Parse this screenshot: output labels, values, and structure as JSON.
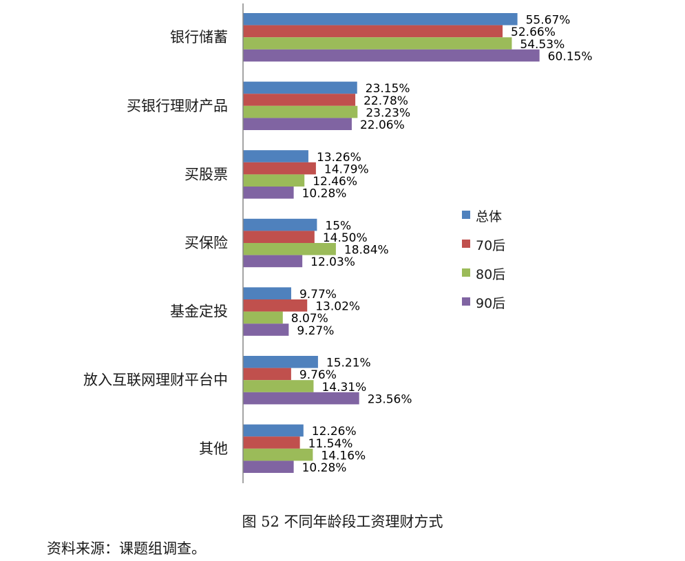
{
  "chart_data": {
    "type": "bar",
    "orientation": "horizontal",
    "title": "",
    "xlabel": "",
    "ylabel": "",
    "categories": [
      "银行储蓄",
      "买银行理财产品",
      "买股票",
      "买保险",
      "基金定投",
      "放入互联网理财平台中",
      "其他"
    ],
    "series": [
      {
        "name": "总体",
        "color": "#4F81BD",
        "values": [
          55.67,
          23.15,
          13.26,
          15,
          9.77,
          15.21,
          12.26
        ],
        "labels": [
          "55.67%",
          "23.15%",
          "13.26%",
          "15%",
          "9.77%",
          "15.21%",
          "12.26%"
        ]
      },
      {
        "name": "70后",
        "color": "#C0504D",
        "values": [
          52.66,
          22.78,
          14.79,
          14.5,
          13.02,
          9.76,
          11.54
        ],
        "labels": [
          "52.66%",
          "22.78%",
          "14.79%",
          "14.50%",
          "13.02%",
          "9.76%",
          "11.54%"
        ]
      },
      {
        "name": "80后",
        "color": "#9BBB59",
        "values": [
          54.53,
          23.23,
          12.46,
          18.84,
          8.07,
          14.31,
          14.16
        ],
        "labels": [
          "54.53%",
          "23.23%",
          "12.46%",
          "18.84%",
          "8.07%",
          "14.31%",
          "14.16%"
        ]
      },
      {
        "name": "90后",
        "color": "#8064A2",
        "values": [
          60.15,
          22.06,
          10.28,
          12.03,
          9.27,
          23.56,
          10.28
        ],
        "labels": [
          "60.15%",
          "22.06%",
          "10.28%",
          "12.03%",
          "9.27%",
          "23.56%",
          "10.28%"
        ]
      }
    ],
    "xlim": [
      0,
      100
    ],
    "grid": false,
    "legend_position": "right"
  },
  "caption": "图 52  不同年龄段工资理财方式",
  "source": "资料来源：课题组调查。"
}
